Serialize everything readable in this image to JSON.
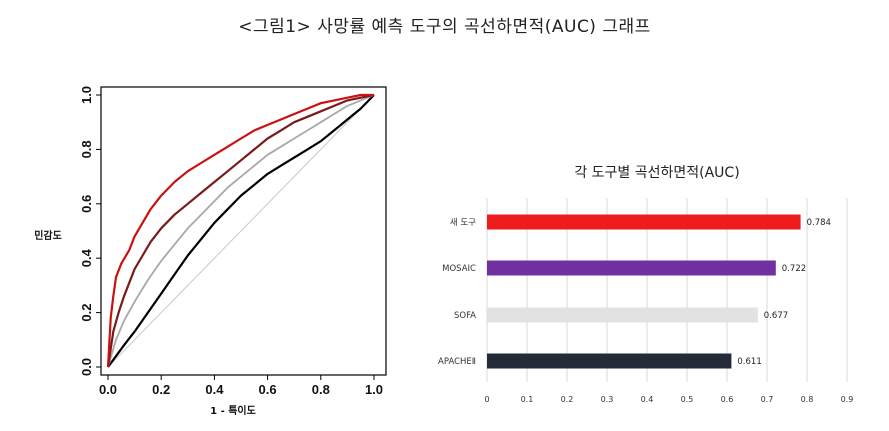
{
  "title": "<그림1> 사망률 예측 도구의 곡선하면적(AUC) 그래프",
  "chart_data": [
    {
      "type": "line",
      "xlabel": "1 - 특이도",
      "ylabel": "민감도",
      "xlim": [
        0,
        1
      ],
      "ylim": [
        0,
        1
      ],
      "x_ticks": [
        "0.0",
        "0.2",
        "0.4",
        "0.6",
        "0.8",
        "1.0"
      ],
      "y_ticks": [
        "0.0",
        "0.2",
        "0.4",
        "0.6",
        "0.8",
        "1.0"
      ],
      "grid": false,
      "series": [
        {
          "color": "#cc1010",
          "points": [
            [
              0,
              0
            ],
            [
              0.01,
              0.18
            ],
            [
              0.02,
              0.26
            ],
            [
              0.03,
              0.33
            ],
            [
              0.05,
              0.38
            ],
            [
              0.08,
              0.43
            ],
            [
              0.1,
              0.48
            ],
            [
              0.13,
              0.53
            ],
            [
              0.16,
              0.58
            ],
            [
              0.2,
              0.63
            ],
            [
              0.25,
              0.68
            ],
            [
              0.3,
              0.72
            ],
            [
              0.35,
              0.75
            ],
            [
              0.4,
              0.78
            ],
            [
              0.45,
              0.81
            ],
            [
              0.5,
              0.84
            ],
            [
              0.55,
              0.87
            ],
            [
              0.6,
              0.89
            ],
            [
              0.65,
              0.91
            ],
            [
              0.7,
              0.93
            ],
            [
              0.75,
              0.95
            ],
            [
              0.8,
              0.97
            ],
            [
              0.85,
              0.98
            ],
            [
              0.9,
              0.99
            ],
            [
              0.95,
              1.0
            ],
            [
              1,
              1
            ]
          ]
        },
        {
          "color": "#7a1a1a",
          "points": [
            [
              0,
              0
            ],
            [
              0.02,
              0.13
            ],
            [
              0.04,
              0.2
            ],
            [
              0.06,
              0.26
            ],
            [
              0.08,
              0.31
            ],
            [
              0.1,
              0.36
            ],
            [
              0.13,
              0.41
            ],
            [
              0.16,
              0.46
            ],
            [
              0.2,
              0.51
            ],
            [
              0.25,
              0.56
            ],
            [
              0.3,
              0.6
            ],
            [
              0.35,
              0.64
            ],
            [
              0.4,
              0.68
            ],
            [
              0.45,
              0.72
            ],
            [
              0.5,
              0.76
            ],
            [
              0.55,
              0.8
            ],
            [
              0.6,
              0.84
            ],
            [
              0.65,
              0.87
            ],
            [
              0.7,
              0.9
            ],
            [
              0.75,
              0.92
            ],
            [
              0.8,
              0.94
            ],
            [
              0.85,
              0.96
            ],
            [
              0.9,
              0.98
            ],
            [
              0.95,
              0.99
            ],
            [
              1,
              1
            ]
          ]
        },
        {
          "color": "#a8a8a8",
          "points": [
            [
              0,
              0
            ],
            [
              0.03,
              0.1
            ],
            [
              0.06,
              0.17
            ],
            [
              0.1,
              0.24
            ],
            [
              0.15,
              0.32
            ],
            [
              0.2,
              0.39
            ],
            [
              0.25,
              0.45
            ],
            [
              0.3,
              0.51
            ],
            [
              0.35,
              0.56
            ],
            [
              0.4,
              0.61
            ],
            [
              0.45,
              0.66
            ],
            [
              0.5,
              0.7
            ],
            [
              0.55,
              0.74
            ],
            [
              0.6,
              0.78
            ],
            [
              0.65,
              0.81
            ],
            [
              0.7,
              0.84
            ],
            [
              0.75,
              0.87
            ],
            [
              0.8,
              0.9
            ],
            [
              0.85,
              0.93
            ],
            [
              0.9,
              0.96
            ],
            [
              0.95,
              0.98
            ],
            [
              1,
              1
            ]
          ]
        },
        {
          "color": "#000000",
          "points": [
            [
              0,
              0
            ],
            [
              0.03,
              0.04
            ],
            [
              0.06,
              0.08
            ],
            [
              0.1,
              0.13
            ],
            [
              0.15,
              0.2
            ],
            [
              0.2,
              0.27
            ],
            [
              0.25,
              0.34
            ],
            [
              0.3,
              0.41
            ],
            [
              0.35,
              0.47
            ],
            [
              0.4,
              0.53
            ],
            [
              0.45,
              0.58
            ],
            [
              0.5,
              0.63
            ],
            [
              0.55,
              0.67
            ],
            [
              0.6,
              0.71
            ],
            [
              0.65,
              0.74
            ],
            [
              0.7,
              0.77
            ],
            [
              0.75,
              0.8
            ],
            [
              0.8,
              0.83
            ],
            [
              0.85,
              0.87
            ],
            [
              0.9,
              0.91
            ],
            [
              0.95,
              0.95
            ],
            [
              1,
              1
            ]
          ]
        },
        {
          "color": "#c8c8c8",
          "points": [
            [
              0,
              0
            ],
            [
              1,
              1
            ]
          ]
        }
      ]
    },
    {
      "type": "bar",
      "orientation": "horizontal",
      "title": "각 도구별 곡선하면적(AUC)",
      "categories": [
        "새 도구",
        "MOSAIC",
        "SOFA",
        "APACHEⅡ"
      ],
      "values": [
        0.784,
        0.722,
        0.677,
        0.611
      ],
      "value_labels": [
        "0.784",
        "0.722",
        "0.677",
        "0.611"
      ],
      "colors": [
        "#ee1c1c",
        "#7030a0",
        "#e2e2e2",
        "#232a38"
      ],
      "xlim": [
        0,
        0.9
      ],
      "x_ticks": [
        "0",
        "0.1",
        "0.2",
        "0.3",
        "0.4",
        "0.5",
        "0.6",
        "0.7",
        "0.8",
        "0.9"
      ],
      "grid": true
    }
  ]
}
